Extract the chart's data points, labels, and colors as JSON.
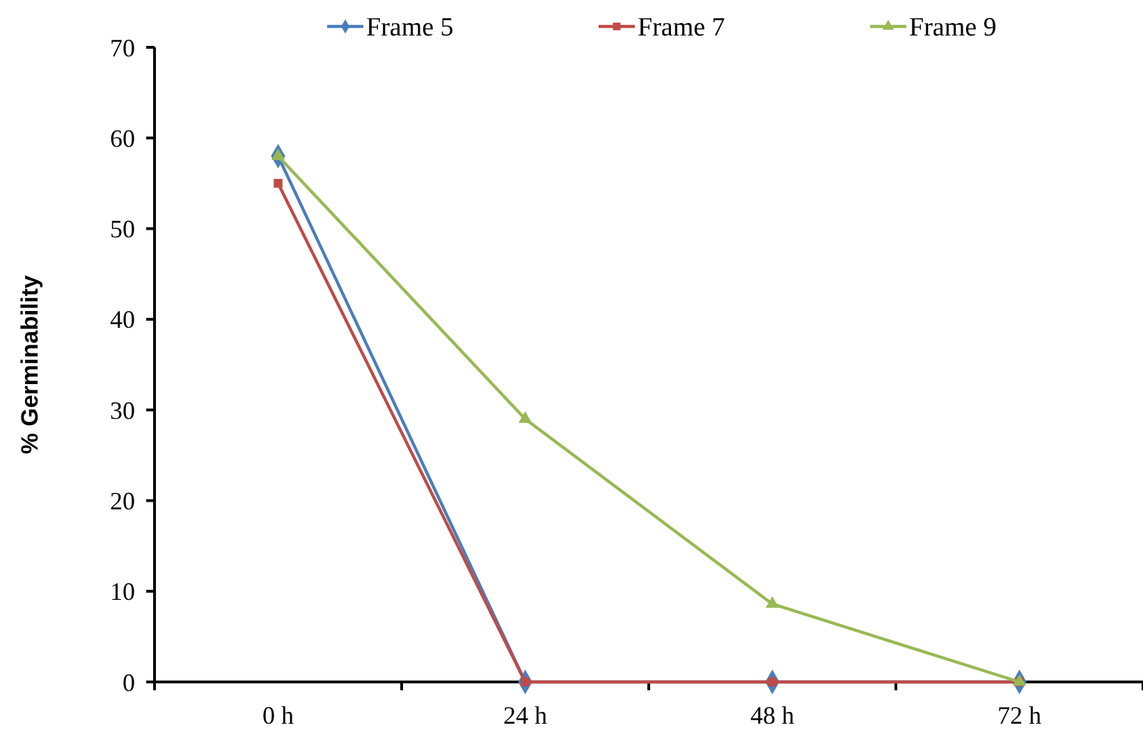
{
  "chart_data": {
    "type": "line",
    "ylabel": "% Germinability",
    "categories": [
      "0 h",
      "24 h",
      "48 h",
      "72 h"
    ],
    "series": [
      {
        "name": "Frame 5",
        "color": "#4a7ebb",
        "marker": "diamond",
        "values": [
          58,
          0,
          0,
          0
        ]
      },
      {
        "name": "Frame 7",
        "color": "#be4b48",
        "marker": "square",
        "values": [
          55,
          0,
          0,
          0
        ]
      },
      {
        "name": "Frame 9",
        "color": "#98b954",
        "marker": "triangle",
        "values": [
          58,
          29,
          8.6,
          0
        ]
      }
    ],
    "ylim": [
      0,
      70
    ],
    "yticks": [
      0,
      10,
      20,
      30,
      40,
      50,
      60,
      70
    ],
    "grid": false,
    "legend": "top",
    "line_style": "solid"
  }
}
